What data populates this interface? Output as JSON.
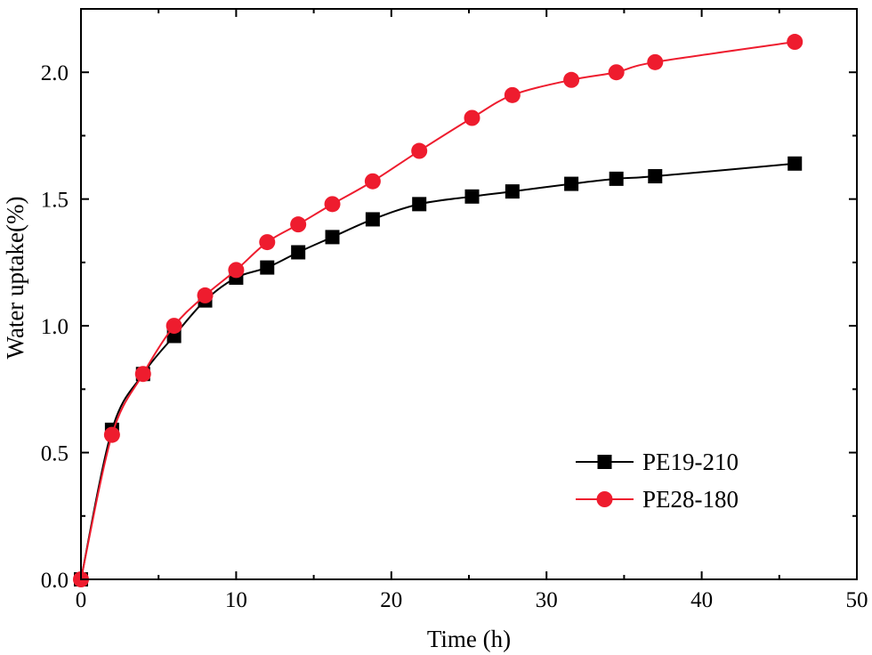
{
  "chart_data": {
    "type": "line",
    "xlabel": "Time (h)",
    "ylabel": "Water uptake(%)",
    "xlim": [
      0,
      50
    ],
    "ylim": [
      0,
      2.25
    ],
    "x_ticks": [
      0,
      10,
      20,
      30,
      40,
      50
    ],
    "y_ticks": [
      0.0,
      0.5,
      1.0,
      1.5,
      2.0
    ],
    "x_tick_labels": [
      "0",
      "10",
      "20",
      "30",
      "40",
      "50"
    ],
    "y_tick_labels": [
      "0.0",
      "0.5",
      "1.0",
      "1.5",
      "2.0"
    ],
    "grid": false,
    "legend_position": "bottom-right",
    "series": [
      {
        "name": "PE19-210",
        "color": "#000000",
        "marker": "square",
        "x": [
          0,
          2,
          4,
          6,
          8,
          10,
          12,
          14,
          16.2,
          18.8,
          21.8,
          25.2,
          27.8,
          31.6,
          34.5,
          37,
          46
        ],
        "y": [
          0,
          0.59,
          0.81,
          0.96,
          1.1,
          1.19,
          1.23,
          1.29,
          1.35,
          1.42,
          1.48,
          1.51,
          1.53,
          1.56,
          1.58,
          1.59,
          1.64
        ]
      },
      {
        "name": "PE28-180",
        "color": "#ee1c2e",
        "marker": "circle",
        "x": [
          0,
          2,
          4,
          6,
          8,
          10,
          12,
          14,
          16.2,
          18.8,
          21.8,
          25.2,
          27.8,
          31.6,
          34.5,
          37,
          46
        ],
        "y": [
          0,
          0.57,
          0.81,
          1.0,
          1.12,
          1.22,
          1.33,
          1.4,
          1.48,
          1.57,
          1.69,
          1.82,
          1.91,
          1.97,
          2.0,
          2.04,
          2.12
        ]
      }
    ]
  }
}
